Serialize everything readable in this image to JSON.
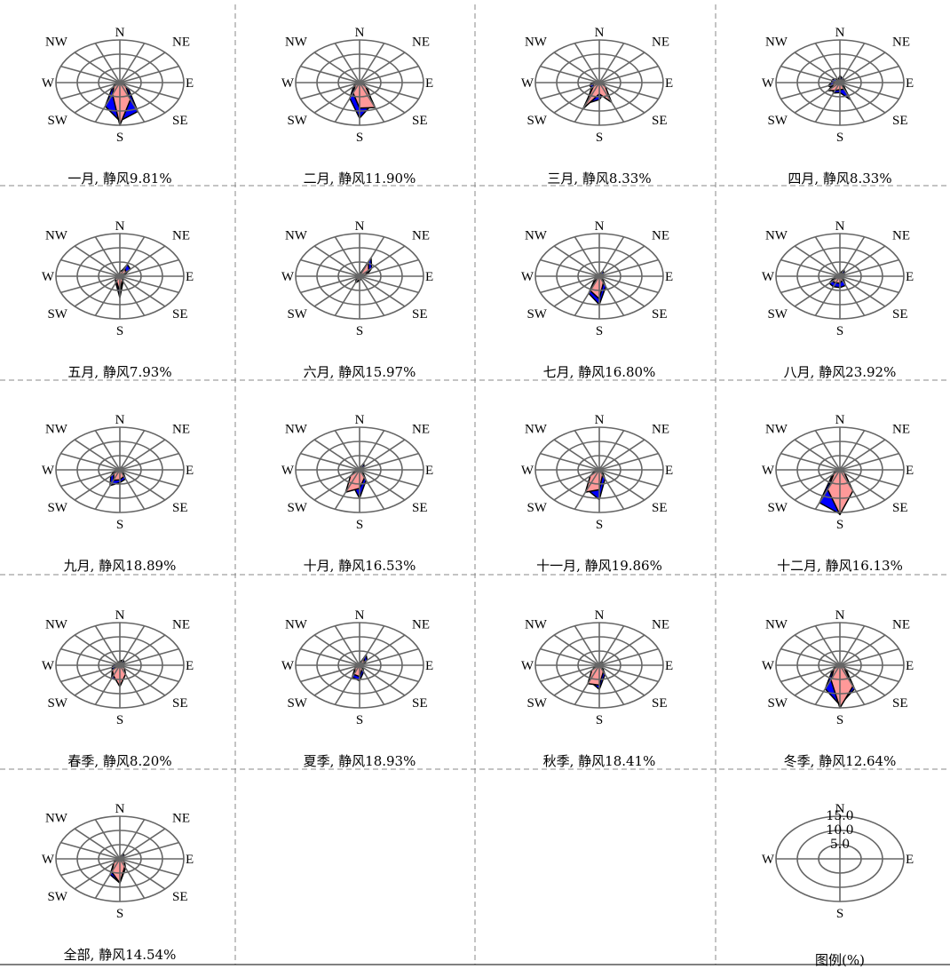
{
  "directions": [
    "N",
    "NE",
    "E",
    "SE",
    "S",
    "SW",
    "W",
    "NW"
  ],
  "colors": {
    "grid": "#666666",
    "separator": "#888888",
    "series_blue": "#0000ff",
    "series_pink": "#ff9999",
    "outline": "#000000"
  },
  "chart_data": [
    {
      "type": "radar",
      "caption": "一月, 静风9.81%",
      "series": [
        {
          "color": "#0000ff",
          "values": [
            0.5,
            0.5,
            1,
            0.5,
            0.5,
            1,
            5.5,
            22,
            27,
            18,
            5,
            2,
            1,
            0.5,
            1,
            0.5
          ]
        },
        {
          "color": "#ff9999",
          "values": [
            0.5,
            0.5,
            0.5,
            0.5,
            0.5,
            1,
            4,
            13,
            30,
            9,
            4,
            1,
            1,
            0.5,
            0.5,
            0.5
          ]
        }
      ]
    },
    {
      "type": "radar",
      "caption": "二月, 静风11.90%",
      "series": [
        {
          "color": "#0000ff",
          "values": [
            0.5,
            1,
            1.5,
            0.5,
            0.5,
            1,
            5,
            16,
            25,
            12,
            4,
            2,
            1,
            0.5,
            0.5,
            0.5
          ]
        },
        {
          "color": "#ff9999",
          "values": [
            0.5,
            0.5,
            0.5,
            0.5,
            0.5,
            1,
            4,
            19,
            18,
            8,
            3,
            1.5,
            0.5,
            0.5,
            0.5,
            0.5
          ]
        }
      ]
    },
    {
      "type": "radar",
      "caption": "三月, 静风8.33%",
      "series": [
        {
          "color": "#0000ff",
          "values": [
            1,
            1,
            1,
            1,
            0.5,
            1,
            4,
            7,
            12,
            16,
            5,
            5,
            3,
            1,
            1,
            1
          ]
        },
        {
          "color": "#ff9999",
          "values": [
            1,
            0.5,
            0.5,
            1,
            0.5,
            1,
            4,
            15,
            8,
            20,
            4,
            3,
            2,
            1,
            0.5,
            0.5
          ]
        }
      ]
    },
    {
      "type": "radar",
      "caption": "四月, 静风8.33%",
      "series": [
        {
          "color": "#0000ff",
          "values": [
            5,
            3,
            3,
            2,
            1,
            1,
            2,
            13,
            7,
            8,
            5,
            6,
            4,
            4,
            4,
            2
          ]
        },
        {
          "color": "#ff9999",
          "values": [
            3,
            2,
            2,
            1,
            1,
            1,
            2,
            5,
            5,
            6,
            8,
            3,
            3,
            2,
            2,
            2
          ]
        }
      ]
    },
    {
      "type": "radar",
      "caption": "五月, 静风7.93%",
      "series": [
        {
          "color": "#0000ff",
          "values": [
            2,
            9,
            7,
            2,
            1,
            1,
            2,
            4,
            15,
            5,
            3,
            2,
            1,
            1,
            1,
            1
          ]
        },
        {
          "color": "#ff9999",
          "values": [
            3,
            6,
            4,
            2,
            1,
            1,
            2,
            3,
            11,
            4,
            3,
            2,
            1,
            1,
            1,
            1
          ]
        }
      ]
    },
    {
      "type": "radar",
      "caption": "六月, 静风15.97%",
      "series": [
        {
          "color": "#0000ff",
          "values": [
            1,
            14,
            8,
            4,
            1,
            1,
            1,
            2,
            3,
            5,
            2,
            1,
            1,
            1,
            1,
            1
          ]
        },
        {
          "color": "#ff9999",
          "values": [
            1,
            11,
            6,
            3,
            1,
            1,
            1,
            2,
            3,
            3,
            2,
            1,
            1,
            1,
            1,
            1
          ]
        }
      ]
    },
    {
      "type": "radar",
      "caption": "七月, 静风16.80%",
      "series": [
        {
          "color": "#0000ff",
          "values": [
            1,
            4,
            3,
            1,
            1,
            1,
            2,
            8,
            20,
            13,
            3,
            2,
            1,
            1,
            1,
            1
          ]
        },
        {
          "color": "#ff9999",
          "values": [
            1,
            2,
            2,
            1,
            1,
            1,
            2,
            5,
            16,
            11,
            2,
            1,
            1,
            1,
            1,
            1
          ]
        }
      ]
    },
    {
      "type": "radar",
      "caption": "八月, 静风23.92%",
      "series": [
        {
          "color": "#0000ff",
          "values": [
            2,
            5,
            3,
            2,
            1,
            1,
            2,
            7,
            8,
            8,
            7,
            3,
            2,
            1,
            1,
            1
          ]
        },
        {
          "color": "#ff9999",
          "values": [
            2,
            3,
            2,
            1,
            1,
            1,
            2,
            3,
            5,
            5,
            5,
            2,
            1,
            1,
            1,
            1
          ]
        }
      ]
    },
    {
      "type": "radar",
      "caption": "九月, 静风18.89%",
      "series": [
        {
          "color": "#0000ff",
          "values": [
            1,
            2,
            2,
            1,
            1,
            1,
            2,
            7,
            9,
            12,
            6,
            3,
            1,
            1,
            1,
            1
          ]
        },
        {
          "color": "#ff9999",
          "values": [
            1,
            2,
            2,
            1,
            1,
            1,
            2,
            5,
            7,
            8,
            4,
            2,
            1,
            1,
            1,
            1
          ]
        }
      ]
    },
    {
      "type": "radar",
      "caption": "十月, 静风16.53%",
      "series": [
        {
          "color": "#0000ff",
          "values": [
            1,
            5,
            3,
            1,
            1,
            1,
            2,
            8,
            20,
            10,
            2,
            2,
            1,
            1,
            1,
            1
          ]
        },
        {
          "color": "#ff9999",
          "values": [
            1,
            3,
            2,
            1,
            1,
            1,
            2,
            6,
            13,
            17,
            6,
            2,
            1,
            1,
            1,
            1
          ]
        }
      ]
    },
    {
      "type": "radar",
      "caption": "十一月, 静风19.86%",
      "series": [
        {
          "color": "#0000ff",
          "values": [
            1,
            2,
            1,
            1,
            1,
            1,
            2,
            7,
            21,
            15,
            5,
            2,
            1,
            1,
            1,
            1
          ]
        },
        {
          "color": "#ff9999",
          "values": [
            1,
            1,
            1,
            1,
            1,
            1,
            2,
            4,
            14,
            17,
            6,
            2,
            1,
            1,
            1,
            1
          ]
        }
      ]
    },
    {
      "type": "radar",
      "caption": "十二月, 静风16.13%",
      "series": [
        {
          "color": "#0000ff",
          "values": [
            1,
            2,
            1,
            1,
            0.5,
            1,
            3,
            14,
            31,
            25,
            5,
            2,
            1,
            0.5,
            0.5,
            0.5
          ]
        },
        {
          "color": "#ff9999",
          "values": [
            0.5,
            1,
            1,
            0.5,
            0.5,
            1,
            3,
            16,
            35,
            15,
            4,
            1,
            1,
            0.5,
            0.5,
            0.5
          ]
        }
      ]
    },
    {
      "type": "radar",
      "caption": "春季, 静风8.20%",
      "series": [
        {
          "color": "#0000ff",
          "values": [
            3,
            4,
            3,
            2,
            1,
            1,
            3,
            7,
            11,
            10,
            5,
            4,
            3,
            2,
            2,
            2
          ]
        },
        {
          "color": "#ff9999",
          "values": [
            2,
            3,
            2,
            1,
            1,
            1,
            3,
            7,
            15,
            8,
            5,
            2,
            2,
            1,
            1,
            1
          ]
        }
      ]
    },
    {
      "type": "radar",
      "caption": "夏季, 静风18.93%",
      "series": [
        {
          "color": "#0000ff",
          "values": [
            1,
            8,
            5,
            2,
            1,
            1,
            2,
            5,
            11,
            9,
            3,
            2,
            1,
            1,
            1,
            1
          ]
        },
        {
          "color": "#ff9999",
          "values": [
            1,
            6,
            3,
            2,
            1,
            1,
            2,
            3,
            8,
            7,
            3,
            1,
            1,
            1,
            1,
            1
          ]
        }
      ]
    },
    {
      "type": "radar",
      "caption": "秋季, 静风18.41%",
      "series": [
        {
          "color": "#0000ff",
          "values": [
            1,
            3,
            2,
            1,
            1,
            1,
            2,
            7,
            17,
            12,
            4,
            2,
            1,
            1,
            1,
            1
          ]
        },
        {
          "color": "#ff9999",
          "values": [
            1,
            2,
            2,
            1,
            1,
            1,
            2,
            5,
            14,
            14,
            5,
            2,
            1,
            1,
            1,
            1
          ]
        }
      ]
    },
    {
      "type": "radar",
      "caption": "冬季, 静风12.64%",
      "series": [
        {
          "color": "#0000ff",
          "values": [
            0.5,
            1,
            1,
            0.5,
            0.5,
            1,
            4,
            18,
            28,
            18,
            5,
            2,
            1,
            0.5,
            0.5,
            0.5
          ]
        },
        {
          "color": "#ff9999",
          "values": [
            0.5,
            1,
            1,
            0.5,
            0.5,
            1,
            3,
            16,
            30,
            11,
            4,
            1,
            1,
            0.5,
            0.5,
            0.5
          ]
        }
      ]
    },
    {
      "type": "radar",
      "caption": "全部, 静风14.54%",
      "series": [
        {
          "color": "#0000ff",
          "values": [
            1,
            4,
            3,
            1,
            1,
            1,
            3,
            7,
            17,
            12,
            4,
            2,
            1,
            1,
            1,
            1
          ]
        },
        {
          "color": "#ff9999",
          "values": [
            1,
            3,
            2,
            1,
            1,
            1,
            3,
            6,
            17,
            10,
            4,
            2,
            1,
            1,
            1,
            1
          ]
        }
      ]
    }
  ],
  "legend": {
    "caption": "图例(%)",
    "ring_labels": [
      "5.0",
      "10.0",
      "15.0"
    ],
    "ring_values": [
      5,
      10,
      15
    ],
    "directions": [
      "N",
      "E",
      "S",
      "W"
    ]
  }
}
